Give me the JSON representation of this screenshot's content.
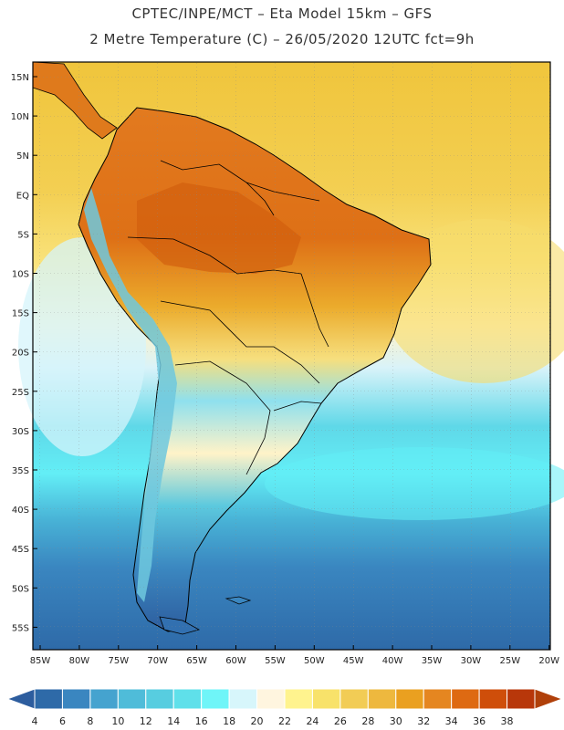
{
  "title_line1": "CPTEC/INPE/MCT –  Eta Model 15km – GFS",
  "title_line2": "2 Metre Temperature (C) – 26/05/2020 12UTC fct=9h",
  "lat_labels": [
    "15N",
    "10N",
    "5N",
    "EQ",
    "5S",
    "10S",
    "15S",
    "20S",
    "25S",
    "30S",
    "35S",
    "40S",
    "45S",
    "50S",
    "55S"
  ],
  "lon_labels": [
    "85W",
    "80W",
    "75W",
    "70W",
    "65W",
    "60W",
    "55W",
    "50W",
    "45W",
    "40W",
    "35W",
    "30W",
    "25W",
    "20W"
  ],
  "colorbar": {
    "ticks": [
      "4",
      "6",
      "8",
      "10",
      "12",
      "14",
      "16",
      "18",
      "20",
      "22",
      "24",
      "26",
      "28",
      "30",
      "32",
      "34",
      "36",
      "38"
    ],
    "colors": [
      "#2e6aa8",
      "#3a86c0",
      "#45a3cf",
      "#4fbcd9",
      "#57cde0",
      "#5fe0ea",
      "#6ff5f8",
      "#d7f6fb",
      "#fff5df",
      "#fff38e",
      "#f8e26a",
      "#f2cc55",
      "#eeb83e",
      "#eaa020",
      "#e58620",
      "#de6a12",
      "#cf4e0a",
      "#b8370a"
    ],
    "low_color": "#2d5d9e",
    "high_color": "#b0400a"
  }
}
